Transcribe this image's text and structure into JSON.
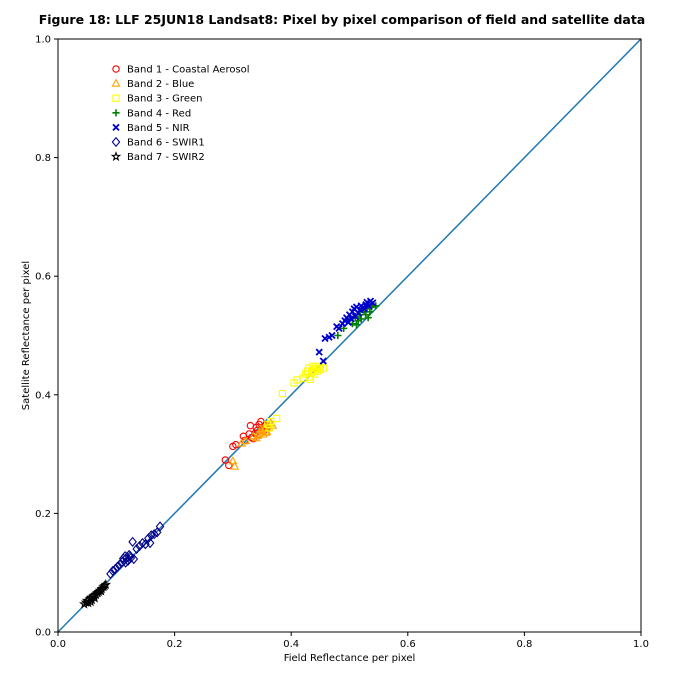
{
  "chart_data": {
    "type": "scatter",
    "title": "Figure 18: LLF 25JUN18  Landsat8: Pixel by pixel comparison of field and satellite data",
    "xlabel": "Field Reflectance per pixel",
    "ylabel": "Satellite Reflectance per pixel",
    "xlim": [
      0.0,
      1.0
    ],
    "ylim": [
      0.0,
      1.0
    ],
    "xticks": [
      "0.0",
      "0.2",
      "0.4",
      "0.6",
      "0.8",
      "1.0"
    ],
    "yticks": [
      "0.0",
      "0.2",
      "0.4",
      "0.6",
      "0.8",
      "1.0"
    ],
    "grid": false,
    "legend_position": "top-left",
    "reference_line": {
      "x": [
        0.0,
        1.0
      ],
      "y": [
        0.0,
        1.0
      ],
      "color": "#1f77b4"
    },
    "series": [
      {
        "name": "Band 1 - Coastal Aerosol",
        "marker": "circle",
        "color": "#ff0000",
        "points": [
          [
            0.287,
            0.29
          ],
          [
            0.293,
            0.281
          ],
          [
            0.3,
            0.313
          ],
          [
            0.305,
            0.316
          ],
          [
            0.318,
            0.33
          ],
          [
            0.32,
            0.323
          ],
          [
            0.328,
            0.334
          ],
          [
            0.33,
            0.348
          ],
          [
            0.335,
            0.326
          ],
          [
            0.338,
            0.335
          ],
          [
            0.34,
            0.345
          ],
          [
            0.342,
            0.34
          ],
          [
            0.345,
            0.35
          ],
          [
            0.348,
            0.355
          ],
          [
            0.35,
            0.342
          ],
          [
            0.352,
            0.338
          ],
          [
            0.355,
            0.348
          ],
          [
            0.345,
            0.333
          ],
          [
            0.332,
            0.328
          ],
          [
            0.358,
            0.345
          ]
        ]
      },
      {
        "name": "Band 2 - Blue",
        "marker": "triangle",
        "color": "#ffa500",
        "points": [
          [
            0.3,
            0.288
          ],
          [
            0.303,
            0.279
          ],
          [
            0.315,
            0.318
          ],
          [
            0.322,
            0.322
          ],
          [
            0.335,
            0.33
          ],
          [
            0.34,
            0.327
          ],
          [
            0.345,
            0.335
          ],
          [
            0.35,
            0.34
          ],
          [
            0.355,
            0.344
          ],
          [
            0.358,
            0.338
          ],
          [
            0.36,
            0.35
          ],
          [
            0.362,
            0.345
          ],
          [
            0.365,
            0.352
          ],
          [
            0.368,
            0.348
          ],
          [
            0.352,
            0.333
          ],
          [
            0.348,
            0.342
          ],
          [
            0.357,
            0.336
          ],
          [
            0.343,
            0.331
          ]
        ]
      },
      {
        "name": "Band 3 - Green",
        "marker": "square",
        "color": "#ffff00",
        "points": [
          [
            0.375,
            0.36
          ],
          [
            0.385,
            0.402
          ],
          [
            0.405,
            0.42
          ],
          [
            0.41,
            0.425
          ],
          [
            0.42,
            0.428
          ],
          [
            0.425,
            0.435
          ],
          [
            0.428,
            0.44
          ],
          [
            0.43,
            0.445
          ],
          [
            0.432,
            0.43
          ],
          [
            0.435,
            0.438
          ],
          [
            0.438,
            0.442
          ],
          [
            0.44,
            0.435
          ],
          [
            0.442,
            0.445
          ],
          [
            0.445,
            0.44
          ],
          [
            0.448,
            0.448
          ],
          [
            0.45,
            0.443
          ],
          [
            0.455,
            0.445
          ],
          [
            0.433,
            0.426
          ],
          [
            0.437,
            0.448
          ],
          [
            0.36,
            0.35
          ],
          [
            0.362,
            0.344
          ],
          [
            0.365,
            0.355
          ]
        ]
      },
      {
        "name": "Band 4 - Red",
        "marker": "plus",
        "color": "#008000",
        "points": [
          [
            0.48,
            0.5
          ],
          [
            0.49,
            0.512
          ],
          [
            0.495,
            0.525
          ],
          [
            0.5,
            0.528
          ],
          [
            0.505,
            0.52
          ],
          [
            0.51,
            0.532
          ],
          [
            0.515,
            0.525
          ],
          [
            0.518,
            0.535
          ],
          [
            0.52,
            0.528
          ],
          [
            0.525,
            0.54
          ],
          [
            0.528,
            0.535
          ],
          [
            0.53,
            0.545
          ],
          [
            0.535,
            0.54
          ],
          [
            0.538,
            0.548
          ],
          [
            0.54,
            0.552
          ],
          [
            0.545,
            0.55
          ],
          [
            0.512,
            0.518
          ],
          [
            0.522,
            0.545
          ],
          [
            0.532,
            0.53
          ]
        ]
      },
      {
        "name": "Band 5 - NIR",
        "marker": "x",
        "color": "#0000cd",
        "points": [
          [
            0.448,
            0.472
          ],
          [
            0.455,
            0.457
          ],
          [
            0.458,
            0.495
          ],
          [
            0.465,
            0.497
          ],
          [
            0.47,
            0.5
          ],
          [
            0.478,
            0.515
          ],
          [
            0.482,
            0.512
          ],
          [
            0.488,
            0.52
          ],
          [
            0.492,
            0.525
          ],
          [
            0.495,
            0.53
          ],
          [
            0.498,
            0.522
          ],
          [
            0.5,
            0.535
          ],
          [
            0.503,
            0.528
          ],
          [
            0.505,
            0.54
          ],
          [
            0.508,
            0.545
          ],
          [
            0.51,
            0.532
          ],
          [
            0.512,
            0.548
          ],
          [
            0.515,
            0.538
          ],
          [
            0.518,
            0.543
          ],
          [
            0.52,
            0.55
          ],
          [
            0.525,
            0.545
          ],
          [
            0.528,
            0.552
          ],
          [
            0.53,
            0.556
          ],
          [
            0.533,
            0.55
          ],
          [
            0.536,
            0.558
          ],
          [
            0.54,
            0.555
          ]
        ]
      },
      {
        "name": "Band 6 - SWIR1",
        "marker": "diamond",
        "color": "#00008b",
        "points": [
          [
            0.09,
            0.098
          ],
          [
            0.094,
            0.103
          ],
          [
            0.098,
            0.106
          ],
          [
            0.102,
            0.11
          ],
          [
            0.106,
            0.114
          ],
          [
            0.11,
            0.118
          ],
          [
            0.112,
            0.124
          ],
          [
            0.115,
            0.128
          ],
          [
            0.118,
            0.126
          ],
          [
            0.12,
            0.12
          ],
          [
            0.122,
            0.13
          ],
          [
            0.125,
            0.125
          ],
          [
            0.128,
            0.152
          ],
          [
            0.13,
            0.123
          ],
          [
            0.135,
            0.14
          ],
          [
            0.14,
            0.145
          ],
          [
            0.145,
            0.15
          ],
          [
            0.15,
            0.148
          ],
          [
            0.155,
            0.158
          ],
          [
            0.158,
            0.15
          ],
          [
            0.16,
            0.163
          ],
          [
            0.165,
            0.165
          ],
          [
            0.17,
            0.168
          ],
          [
            0.175,
            0.178
          ],
          [
            0.116,
            0.117
          ],
          [
            0.124,
            0.128
          ]
        ]
      },
      {
        "name": "Band 7 - SWIR2",
        "marker": "star",
        "color": "#000000",
        "points": [
          [
            0.045,
            0.047
          ],
          [
            0.048,
            0.05
          ],
          [
            0.05,
            0.053
          ],
          [
            0.052,
            0.049
          ],
          [
            0.055,
            0.056
          ],
          [
            0.057,
            0.058
          ],
          [
            0.058,
            0.054
          ],
          [
            0.06,
            0.06
          ],
          [
            0.062,
            0.061
          ],
          [
            0.065,
            0.063
          ],
          [
            0.068,
            0.066
          ],
          [
            0.07,
            0.068
          ],
          [
            0.072,
            0.07
          ],
          [
            0.075,
            0.073
          ],
          [
            0.078,
            0.076
          ],
          [
            0.08,
            0.078
          ],
          [
            0.082,
            0.08
          ],
          [
            0.063,
            0.057
          ],
          [
            0.056,
            0.051
          ],
          [
            0.074,
            0.069
          ]
        ]
      }
    ]
  }
}
